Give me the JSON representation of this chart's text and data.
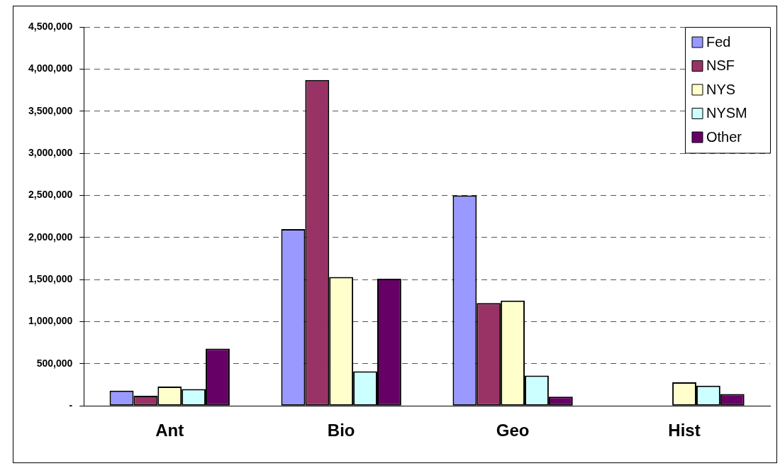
{
  "chart_data": {
    "type": "bar",
    "categories": [
      "Ant",
      "Bio",
      "Geo",
      "Hist"
    ],
    "series": [
      {
        "name": "Fed",
        "color": "#9999ff",
        "values": [
          180000,
          2100000,
          2500000,
          null
        ]
      },
      {
        "name": "NSF",
        "color": "#993366",
        "values": [
          120000,
          3870000,
          1220000,
          null
        ]
      },
      {
        "name": "NYS",
        "color": "#ffffcc",
        "values": [
          230000,
          1530000,
          1250000,
          280000
        ]
      },
      {
        "name": "NYSM",
        "color": "#ccffff",
        "values": [
          200000,
          410000,
          360000,
          240000
        ]
      },
      {
        "name": "Other",
        "color": "#660066",
        "values": [
          680000,
          1510000,
          110000,
          140000
        ]
      }
    ],
    "ylim": [
      0,
      4500000
    ],
    "yticks": [
      {
        "value": 0,
        "label": "-"
      },
      {
        "value": 500000,
        "label": "500,000"
      },
      {
        "value": 1000000,
        "label": "1,000,000"
      },
      {
        "value": 1500000,
        "label": "1,500,000"
      },
      {
        "value": 2000000,
        "label": "2,000,000"
      },
      {
        "value": 2500000,
        "label": "2,500,000"
      },
      {
        "value": 3000000,
        "label": "3,000,000"
      },
      {
        "value": 3500000,
        "label": "3,500,000"
      },
      {
        "value": 4000000,
        "label": "4,000,000"
      },
      {
        "value": 4500000,
        "label": "4,500,000"
      }
    ],
    "grid": "y",
    "legend": "top right"
  }
}
